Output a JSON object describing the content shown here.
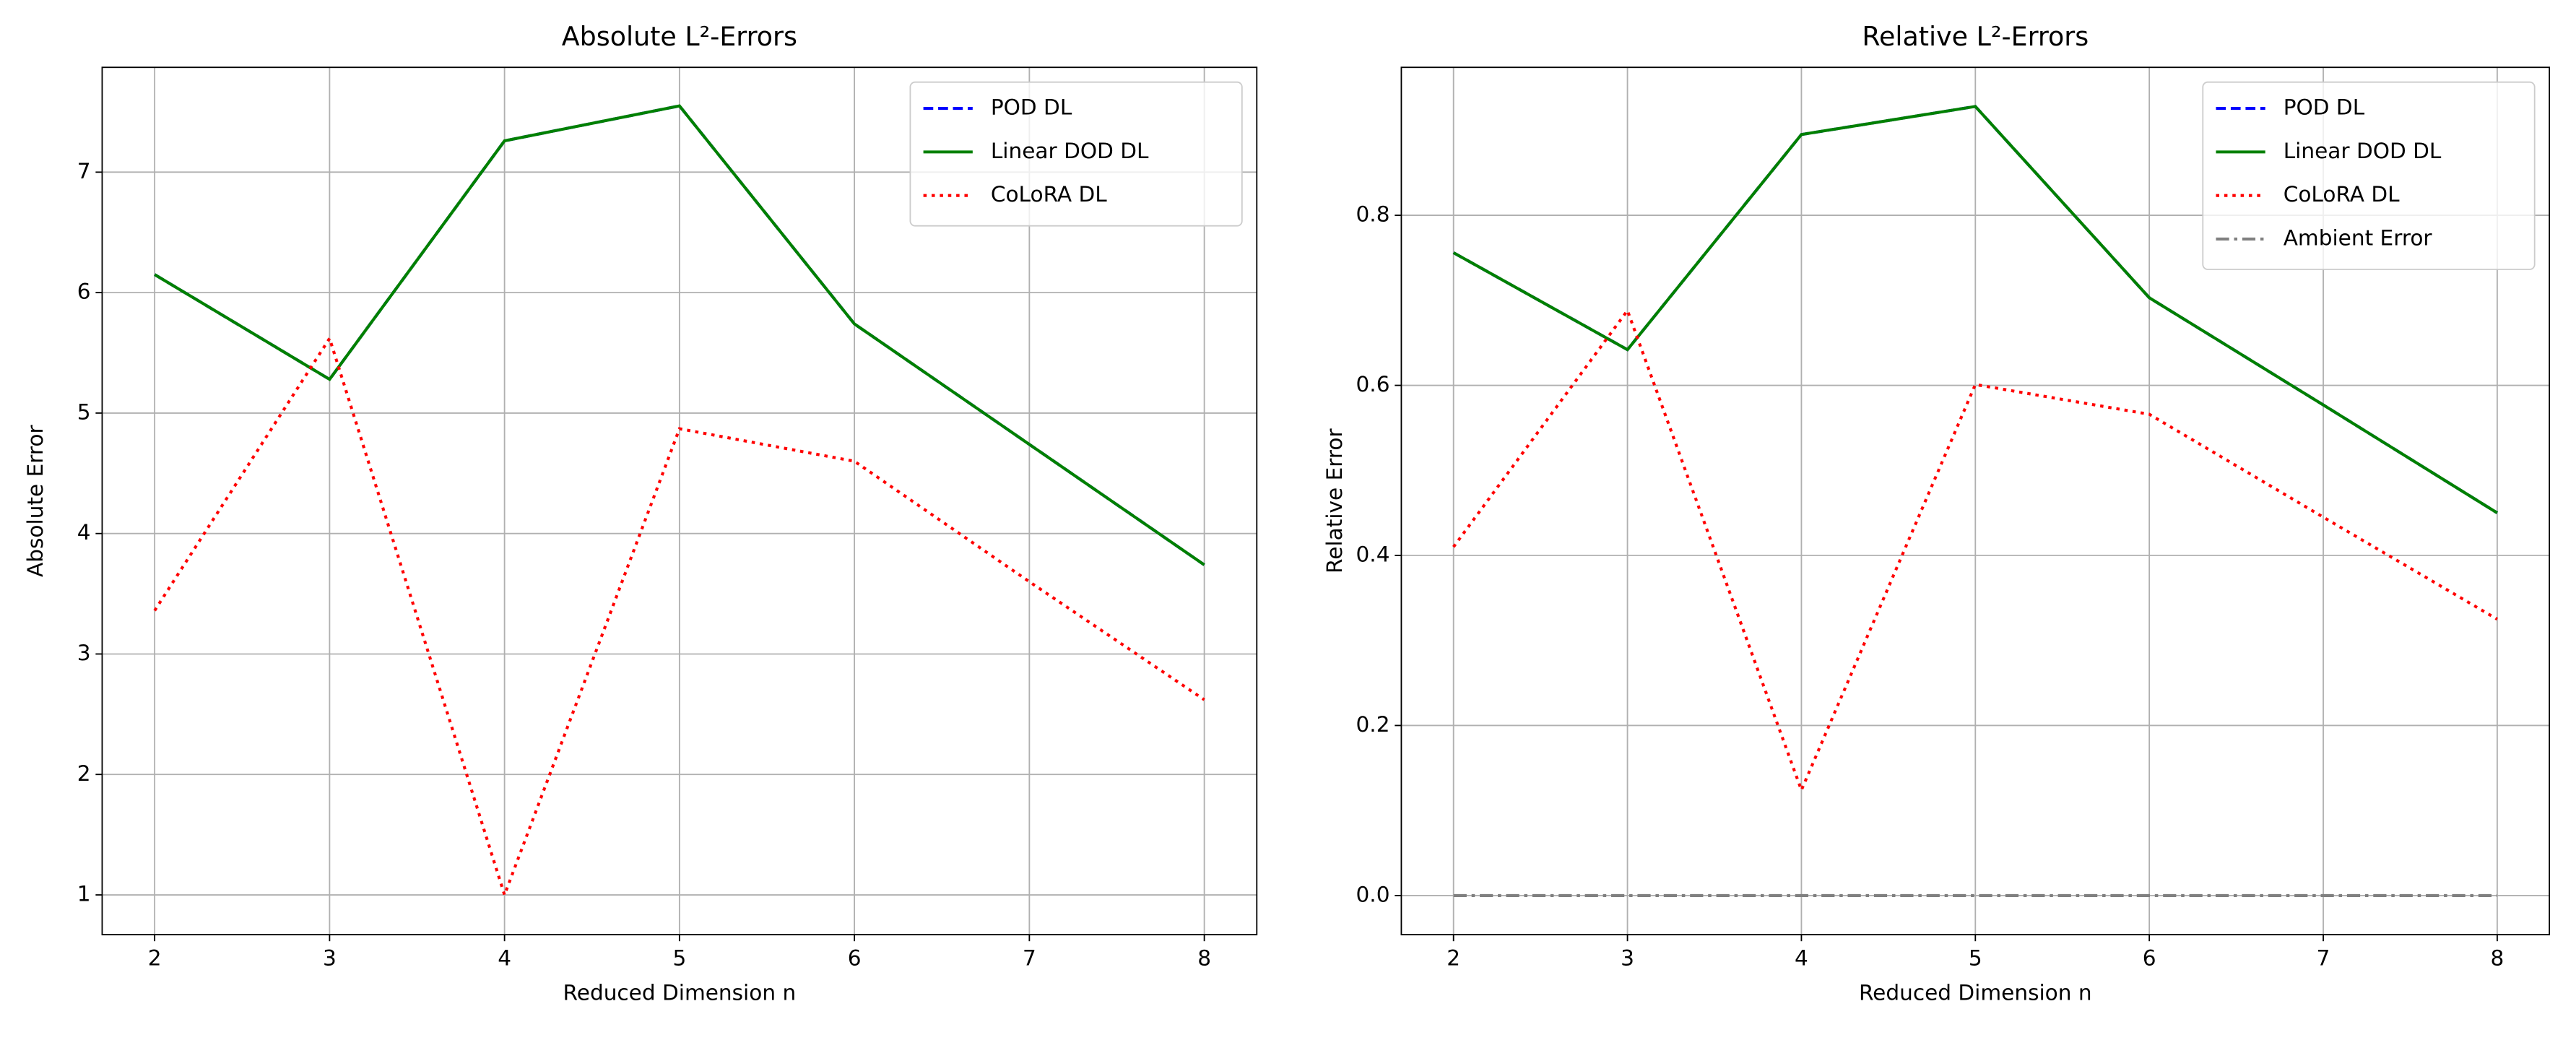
{
  "chart_data": [
    {
      "type": "line",
      "title": "Absolute L²-Errors",
      "xlabel": "Reduced Dimension n",
      "ylabel": "Absolute Error",
      "x": [
        2,
        3,
        4,
        5,
        6,
        7,
        8
      ],
      "series": [
        {
          "name": "POD DL",
          "color": "#0000ff",
          "linestyle": "dashed",
          "values": [
            6.15,
            5.28,
            7.26,
            7.55,
            5.74,
            4.74,
            3.74
          ]
        },
        {
          "name": "Linear DOD DL",
          "color": "#008000",
          "linestyle": "solid",
          "values": [
            6.15,
            5.28,
            7.26,
            7.55,
            5.74,
            4.74,
            3.74
          ]
        },
        {
          "name": "CoLoRA DL",
          "color": "#ff0000",
          "linestyle": "dotted",
          "values": [
            3.36,
            5.62,
            1.0,
            4.87,
            4.6,
            3.6,
            2.62
          ]
        }
      ],
      "xlim": [
        1.7,
        8.3
      ],
      "xticks": [
        2,
        3,
        4,
        5,
        6,
        7,
        8
      ],
      "ylim": [
        0.67,
        7.87
      ],
      "yticks": [
        1,
        2,
        3,
        4,
        5,
        6,
        7
      ],
      "grid": true,
      "legend": "upper right"
    },
    {
      "type": "line",
      "title": "Relative L²-Errors",
      "xlabel": "Reduced Dimension n",
      "ylabel": "Relative Error",
      "x": [
        2,
        3,
        4,
        5,
        6,
        7,
        8
      ],
      "series": [
        {
          "name": "POD DL",
          "color": "#0000ff",
          "linestyle": "dashed",
          "values": [
            0.756,
            0.642,
            0.895,
            0.928,
            0.703,
            0.577,
            0.45
          ]
        },
        {
          "name": "Linear DOD DL",
          "color": "#008000",
          "linestyle": "solid",
          "values": [
            0.756,
            0.642,
            0.895,
            0.928,
            0.703,
            0.577,
            0.45
          ]
        },
        {
          "name": "CoLoRA DL",
          "color": "#ff0000",
          "linestyle": "dotted",
          "values": [
            0.41,
            0.688,
            0.124,
            0.601,
            0.566,
            0.445,
            0.325
          ]
        },
        {
          "name": "Ambient Error",
          "color": "#808080",
          "linestyle": "dashdot",
          "values": [
            0,
            0,
            0,
            0,
            0,
            0,
            0
          ]
        }
      ],
      "xlim": [
        1.7,
        8.3
      ],
      "xticks": [
        2,
        3,
        4,
        5,
        6,
        7,
        8
      ],
      "ylim": [
        -0.046,
        0.974
      ],
      "yticks": [
        {
          "value": 0,
          "label": "0.0"
        },
        0.2,
        0.4,
        0.6,
        0.8
      ],
      "grid": true,
      "legend": "upper right"
    }
  ]
}
